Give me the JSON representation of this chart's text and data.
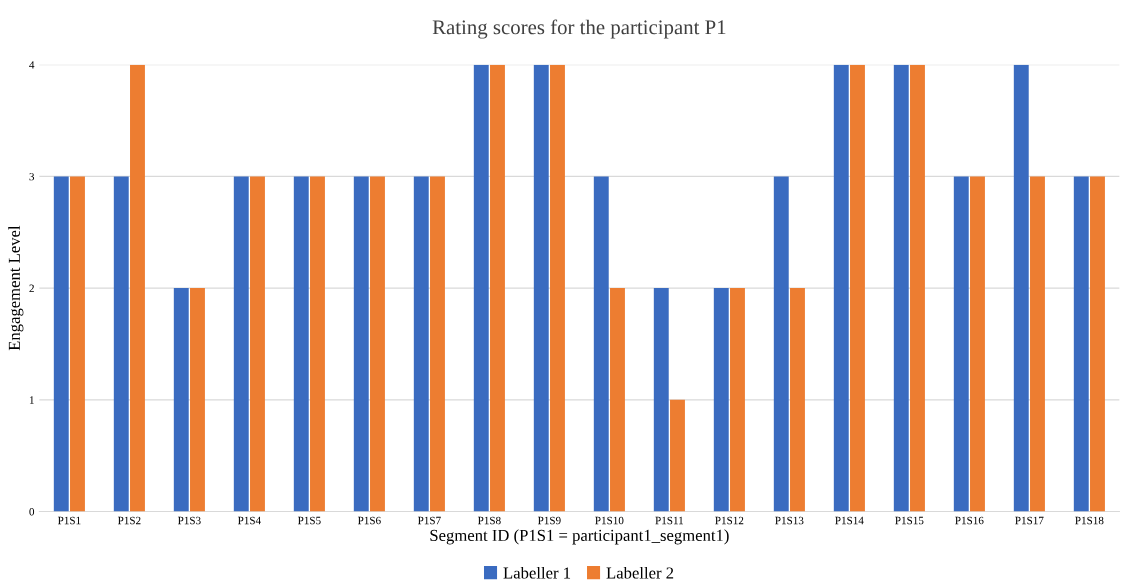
{
  "chart_data": {
    "type": "bar",
    "title": "Rating scores for the participant P1",
    "xlabel": "Segment ID (P1S1 = participant1_segment1)",
    "ylabel": "Engagement Level",
    "categories": [
      "P1S1",
      "P1S2",
      "P1S3",
      "P1S4",
      "P1S5",
      "P1S6",
      "P1S7",
      "P1S8",
      "P1S9",
      "P1S10",
      "P1S11",
      "P1S12",
      "P1S13",
      "P1S14",
      "P1S15",
      "P1S16",
      "P1S17",
      "P1S18"
    ],
    "series": [
      {
        "name": "Labeller 1",
        "color": "#3a6bc0",
        "values": [
          3,
          3,
          2,
          3,
          3,
          3,
          3,
          4,
          4,
          3,
          2,
          2,
          3,
          4,
          4,
          3,
          4,
          3
        ]
      },
      {
        "name": "Labeller 2",
        "color": "#ed7d31",
        "values": [
          3,
          4,
          2,
          3,
          3,
          3,
          3,
          4,
          4,
          2,
          1,
          2,
          2,
          4,
          4,
          3,
          3,
          3
        ]
      }
    ],
    "ylim": [
      0,
      4
    ],
    "yticks": [
      0,
      1,
      2,
      3,
      4
    ],
    "grid": "y",
    "legend": "bottom"
  }
}
